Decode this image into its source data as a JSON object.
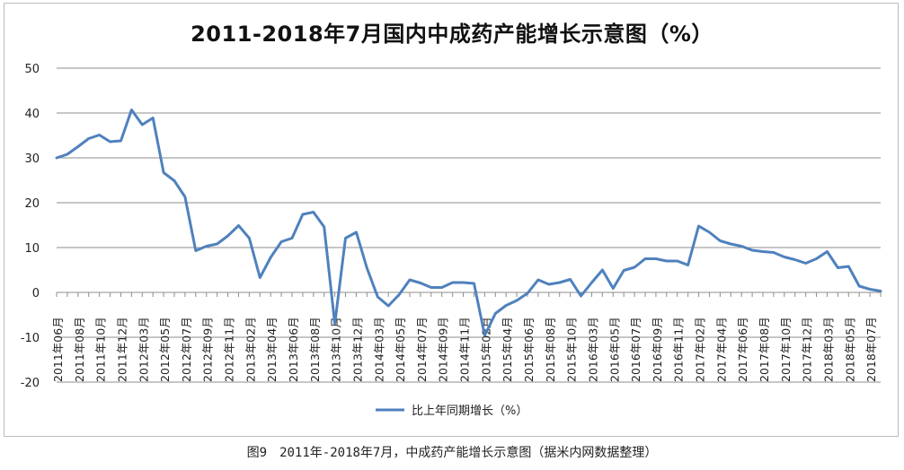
{
  "chart_data": {
    "type": "line",
    "title": "2011-2018年7月国内中成药产能增长示意图（%）",
    "series": [
      {
        "name": "比上年同期增长（%）",
        "color": "#4f81bd",
        "values": [
          30,
          30.8,
          32.5,
          34.3,
          35.1,
          33.6,
          33.8,
          40.7,
          37.4,
          38.9,
          26.7,
          24.9,
          21.3,
          9.3,
          10.3,
          10.8,
          12.6,
          14.9,
          12.1,
          3.3,
          7.8,
          11.3,
          12.1,
          17.4,
          17.9,
          14.6,
          -7,
          12.1,
          13.4,
          5.4,
          -1,
          -3,
          -0.5,
          2.8,
          2.1,
          1.1,
          1.1,
          2.2,
          2.2,
          2,
          -9.6,
          -4.7,
          -2.9,
          -1.8,
          -0.2,
          2.8,
          1.8,
          2.2,
          2.9,
          -0.8,
          2.2,
          5,
          0.9,
          4.9,
          5.6,
          7.5,
          7.5,
          7,
          7,
          6.1,
          14.8,
          13.4,
          11.5,
          10.8,
          10.3,
          9.4,
          9.1,
          8.9,
          7.9,
          7.3,
          6.5,
          7.5,
          9.1,
          5.5,
          5.8,
          1.4,
          0.7,
          0.3
        ]
      }
    ],
    "x_tick_labels": [
      "2011年06月",
      "2011年08月",
      "2011年10月",
      "2011年12月",
      "2012年03月",
      "2012年05月",
      "2012年07月",
      "2012年09月",
      "2012年11月",
      "2013年02月",
      "2013年04月",
      "2013年06月",
      "2013年08月",
      "2013年10月",
      "2013年12月",
      "2014年03月",
      "2014年05月",
      "2014年07月",
      "2014年09月",
      "2014年11月",
      "2015年02月",
      "2015年04月",
      "2015年06月",
      "2015年08月",
      "2015年10月",
      "2016年03月",
      "2016年05月",
      "2016年07月",
      "2016年09月",
      "2016年11月",
      "2017年02月",
      "2017年04月",
      "2017年06月",
      "2017年08月",
      "2017年10月",
      "2017年12月",
      "2018年03月",
      "2018年05月",
      "2018年07月"
    ],
    "ylim": [
      -20,
      50
    ],
    "y_ticks": [
      -20,
      -10,
      0,
      10,
      20,
      30,
      40,
      50
    ],
    "grid": true,
    "legend_position": "bottom"
  },
  "caption": "图9　2011年-2018年7月，中成药产能增长示意图（据米内网数据整理）"
}
